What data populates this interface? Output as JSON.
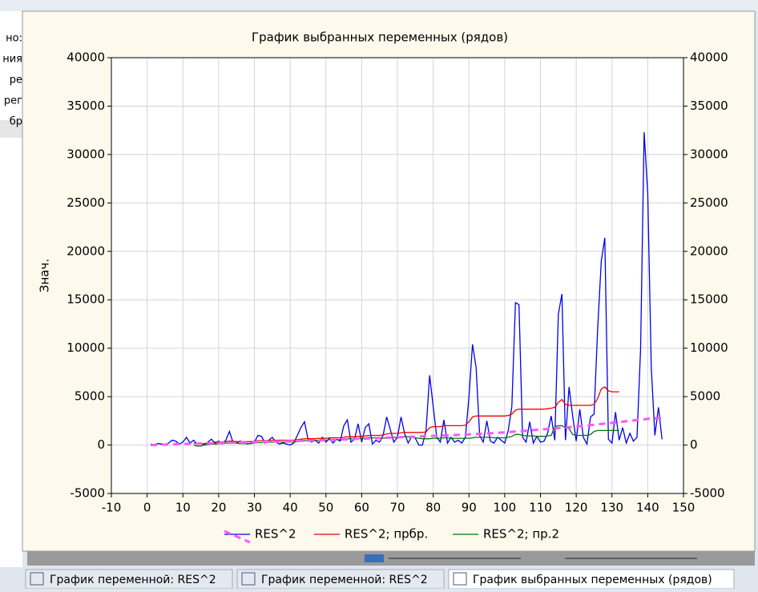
{
  "left_panel": [
    "но:",
    "ния",
    "ре",
    "рег",
    "бр"
  ],
  "tabs": [
    "График переменной: RES^2",
    "График переменной: RES^2",
    "График выбранных переменных (рядов)"
  ],
  "chart_data": {
    "type": "line",
    "title": "График выбранных переменных (рядов)",
    "y_label": "Знач.",
    "xlim": [
      -10,
      150
    ],
    "xticks": [
      -10,
      0,
      10,
      20,
      30,
      40,
      50,
      60,
      70,
      80,
      90,
      100,
      110,
      120,
      130,
      140,
      150
    ],
    "ylim": [
      -5000,
      40000
    ],
    "yticks": [
      -5000,
      0,
      5000,
      10000,
      15000,
      20000,
      25000,
      30000,
      35000,
      40000
    ],
    "y2lim": [
      -5000,
      40000
    ],
    "y2ticks": [
      -5000,
      0,
      5000,
      10000,
      15000,
      20000,
      25000,
      30000,
      35000,
      40000
    ],
    "grid": true,
    "x": [
      1,
      2,
      3,
      4,
      5,
      6,
      7,
      8,
      9,
      10,
      11,
      12,
      13,
      14,
      15,
      16,
      17,
      18,
      19,
      20,
      21,
      22,
      23,
      24,
      25,
      26,
      27,
      28,
      29,
      30,
      31,
      32,
      33,
      34,
      35,
      36,
      37,
      38,
      39,
      40,
      41,
      42,
      43,
      44,
      45,
      46,
      47,
      48,
      49,
      50,
      51,
      52,
      53,
      54,
      55,
      56,
      57,
      58,
      59,
      60,
      61,
      62,
      63,
      64,
      65,
      66,
      67,
      68,
      69,
      70,
      71,
      72,
      73,
      74,
      75,
      76,
      77,
      78,
      79,
      80,
      81,
      82,
      83,
      84,
      85,
      86,
      87,
      88,
      89,
      90,
      91,
      92,
      93,
      94,
      95,
      96,
      97,
      98,
      99,
      100,
      101,
      102,
      103,
      104,
      105,
      106,
      107,
      108,
      109,
      110,
      111,
      112,
      113,
      114,
      115,
      116,
      117,
      118,
      119,
      120,
      121,
      122,
      123,
      124,
      125,
      126,
      127,
      128,
      129,
      130,
      131,
      132,
      133,
      134,
      135,
      136,
      137,
      138,
      139,
      140,
      141,
      142,
      143,
      144
    ],
    "series": [
      {
        "name": "RES^2",
        "color": "#0000ee",
        "values": [
          100,
          50,
          150,
          100,
          0,
          200,
          500,
          400,
          100,
          300,
          800,
          200,
          500,
          100,
          200,
          0,
          300,
          600,
          200,
          400,
          100,
          500,
          1400,
          300,
          200,
          400,
          300,
          100,
          200,
          300,
          1000,
          900,
          200,
          500,
          800,
          300,
          100,
          200,
          100,
          0,
          200,
          1000,
          1800,
          2400,
          600,
          300,
          500,
          200,
          800,
          300,
          700,
          200,
          600,
          400,
          2000,
          2600,
          300,
          600,
          2200,
          300,
          1800,
          2200,
          100,
          500,
          300,
          1000,
          2900,
          1600,
          300,
          800,
          2900,
          1200,
          200,
          900,
          700,
          0,
          0,
          1500,
          7200,
          4000,
          800,
          300,
          2600,
          200,
          800,
          300,
          500,
          200,
          800,
          5000,
          10400,
          8000,
          1000,
          300,
          2500,
          400,
          200,
          800,
          500,
          200,
          1500,
          4000,
          14700,
          14500,
          800,
          300,
          2400,
          200,
          900,
          300,
          400,
          1200,
          3000,
          500,
          13500,
          15600,
          500,
          6000,
          3000,
          400,
          3700,
          800,
          100,
          2900,
          3200,
          12000,
          19000,
          21400,
          600,
          200,
          3400,
          500,
          1800,
          200,
          1200,
          400,
          800,
          10000,
          32300,
          26000,
          8000,
          1000,
          3900,
          600
        ],
        "fit": {
          "color": "#ff55ff",
          "x": [
            1,
            10,
            20,
            30,
            40,
            50,
            60,
            70,
            80,
            90,
            100,
            110,
            120,
            130,
            140,
            144
          ],
          "values": [
            0,
            100,
            200,
            300,
            400,
            500,
            650,
            800,
            950,
            1100,
            1300,
            1600,
            1900,
            2300,
            2700,
            2800
          ]
        }
      },
      {
        "name": "RES^2; прбр.",
        "color": "#ee0000",
        "values": [
          null,
          null,
          null,
          null,
          null,
          null,
          null,
          null,
          null,
          null,
          null,
          null,
          200,
          150,
          100,
          150,
          200,
          250,
          300,
          300,
          300,
          350,
          400,
          400,
          350,
          350,
          350,
          350,
          350,
          400,
          450,
          450,
          450,
          450,
          500,
          500,
          500,
          500,
          500,
          500,
          500,
          550,
          600,
          650,
          650,
          650,
          650,
          700,
          700,
          700,
          750,
          750,
          750,
          750,
          800,
          850,
          850,
          850,
          900,
          900,
          950,
          1000,
          1000,
          1000,
          1000,
          1050,
          1150,
          1200,
          1200,
          1200,
          1250,
          1300,
          1300,
          1300,
          1300,
          1300,
          1300,
          1350,
          1800,
          1900,
          1900,
          1900,
          2000,
          2000,
          2000,
          2000,
          2000,
          2000,
          2050,
          2400,
          2900,
          3000,
          3000,
          3000,
          3000,
          3000,
          3000,
          3000,
          3000,
          3000,
          3050,
          3200,
          3600,
          3700,
          3700,
          3700,
          3700,
          3700,
          3700,
          3700,
          3700,
          3750,
          3800,
          3900,
          4400,
          4700,
          4200,
          4100,
          4100,
          4100,
          4100,
          4100,
          4100,
          4100,
          4200,
          4800,
          5800,
          6000,
          5600,
          5500,
          5500,
          5500,
          null,
          null,
          null,
          null,
          null,
          null,
          null,
          null,
          null,
          null,
          null,
          null
        ]
      },
      {
        "name": "RES^2; пр.2",
        "color": "#007700",
        "values": [
          null,
          null,
          null,
          null,
          null,
          null,
          null,
          null,
          null,
          null,
          null,
          null,
          0,
          -100,
          -100,
          0,
          50,
          100,
          100,
          150,
          150,
          200,
          200,
          200,
          200,
          150,
          150,
          150,
          150,
          200,
          250,
          250,
          250,
          300,
          300,
          300,
          300,
          300,
          300,
          300,
          300,
          350,
          400,
          450,
          450,
          450,
          450,
          500,
          500,
          500,
          550,
          550,
          550,
          550,
          600,
          650,
          650,
          650,
          700,
          700,
          750,
          800,
          750,
          750,
          700,
          700,
          750,
          800,
          800,
          800,
          850,
          900,
          850,
          800,
          750,
          700,
          650,
          650,
          650,
          700,
          700,
          700,
          750,
          750,
          700,
          700,
          700,
          700,
          700,
          700,
          750,
          800,
          800,
          800,
          800,
          800,
          750,
          750,
          750,
          750,
          800,
          900,
          1100,
          1100,
          1000,
          950,
          950,
          950,
          900,
          900,
          900,
          950,
          1000,
          1900,
          2000,
          2000,
          1800,
          1700,
          1100,
          1000,
          1000,
          1000,
          1000,
          1100,
          1400,
          1500,
          1500,
          1500,
          1500,
          1500,
          1500,
          1500,
          null,
          null,
          null,
          null,
          null,
          null,
          null,
          null,
          null,
          null,
          null,
          null
        ]
      }
    ]
  }
}
